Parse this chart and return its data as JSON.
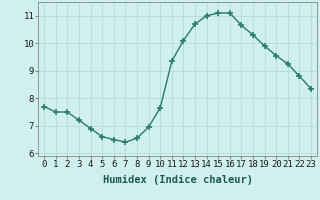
{
  "x": [
    0,
    1,
    2,
    3,
    4,
    5,
    6,
    7,
    8,
    9,
    10,
    11,
    12,
    13,
    14,
    15,
    16,
    17,
    18,
    19,
    20,
    21,
    22,
    23
  ],
  "y": [
    7.7,
    7.5,
    7.5,
    7.2,
    6.9,
    6.6,
    6.5,
    6.4,
    6.55,
    6.95,
    7.65,
    9.35,
    10.1,
    10.7,
    11.0,
    11.1,
    11.1,
    10.65,
    10.3,
    9.9,
    9.55,
    9.25,
    8.8,
    8.35
  ],
  "line_color": "#2a7a6e",
  "marker": "+",
  "marker_size": 4,
  "marker_lw": 1.2,
  "bg_color": "#cff0ec",
  "grid_color": "#b8deda",
  "xlabel": "Humidex (Indice chaleur)",
  "xlim": [
    -0.5,
    23.5
  ],
  "ylim": [
    5.9,
    11.5
  ],
  "yticks": [
    6,
    7,
    8,
    9,
    10,
    11
  ],
  "xticks": [
    0,
    1,
    2,
    3,
    4,
    5,
    6,
    7,
    8,
    9,
    10,
    11,
    12,
    13,
    14,
    15,
    16,
    17,
    18,
    19,
    20,
    21,
    22,
    23
  ],
  "xlabel_fontsize": 7.5,
  "tick_fontsize": 6.5,
  "line_width": 1.0
}
